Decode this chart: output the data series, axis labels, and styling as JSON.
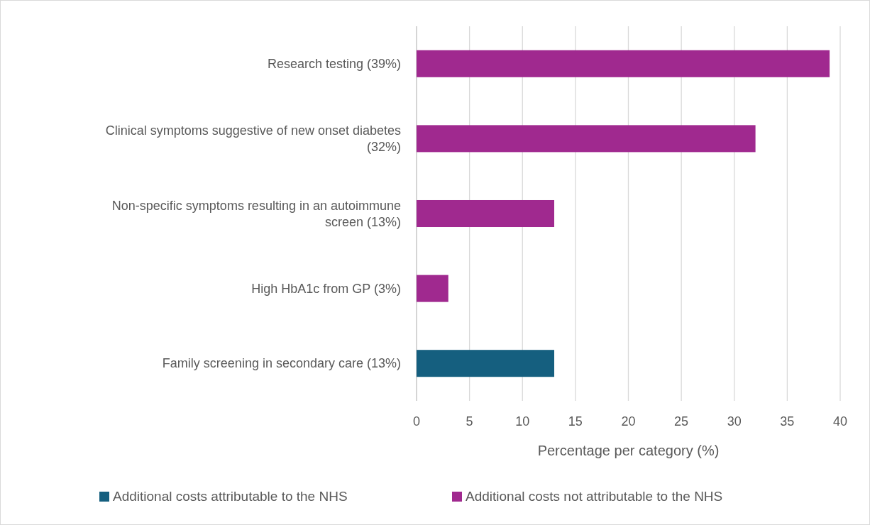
{
  "chart_data": {
    "type": "bar",
    "orientation": "horizontal",
    "categories": [
      "Research testing (39%)",
      "Clinical symptoms suggestive of new onset diabetes (32%)",
      "Non-specific symptoms resulting in an autoimmune screen (13%)",
      "High HbA1c from GP (3%)",
      "Family screening in secondary care (13%)"
    ],
    "series": [
      {
        "name": "Additional costs attributable to the NHS",
        "color": "#155f7f",
        "values": [
          null,
          null,
          null,
          null,
          13
        ]
      },
      {
        "name": "Additional costs not attributable to the NHS",
        "color": "#a0298f",
        "values": [
          39,
          32,
          13,
          3,
          null
        ]
      }
    ],
    "xlabel": "Percentage per category (%)",
    "xlim": [
      0,
      40
    ],
    "xticks": [
      0,
      5,
      10,
      15,
      20,
      25,
      30,
      35,
      40
    ],
    "grid": "x",
    "legend": "bottom"
  }
}
